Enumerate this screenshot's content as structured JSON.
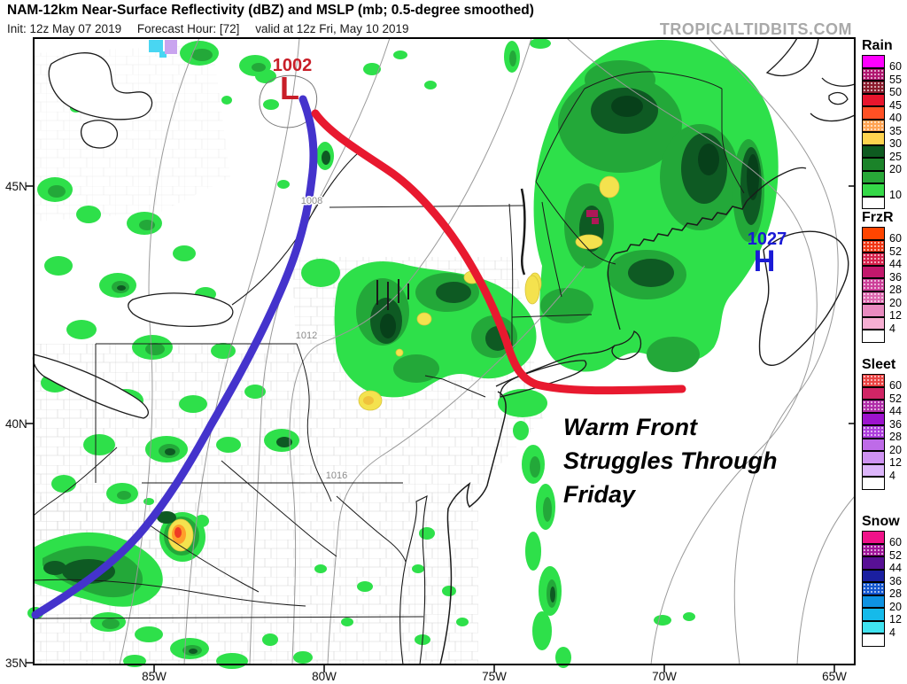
{
  "header": {
    "title": "NAM-12km Near-Surface Reflectivity (dBZ) and MSLP (mb; 0.5-degree smoothed)",
    "init_label": "Init: 12z May 07 2019",
    "forecast_hour_label": "Forecast Hour: [72]",
    "valid_label": "valid at 12z Fri, May 10 2019",
    "watermark": "TROPICALTIDBITS.COM"
  },
  "axes": {
    "lat": [
      "45N",
      "40N",
      "35N"
    ],
    "lon": [
      "85W",
      "80W",
      "75W",
      "70W",
      "65W"
    ]
  },
  "pressure": {
    "low": {
      "value": "1002",
      "symbol": "L"
    },
    "high": {
      "value": "1027",
      "symbol": "H"
    },
    "isobars": [
      "1008",
      "1012",
      "1016"
    ]
  },
  "annotation": {
    "line1": "Warm Front",
    "line2": "Struggles Through",
    "line3": "Friday"
  },
  "colors": {
    "warm_front": "#e8192f",
    "cold_front": "#4433cc",
    "low": "#c81e28",
    "high": "#1a1ad6",
    "watermark": "#a9a9a9",
    "rain_light_green": "#2ee04a",
    "rain_dark_green": "#0e5a23",
    "rain_yellow": "#f4e24e"
  },
  "legends": [
    {
      "title": "Rain",
      "cells": [
        {
          "color": "#FF00FF",
          "dotted": false,
          "label": "60"
        },
        {
          "color": "#B0156F",
          "dotted": true,
          "label": "55"
        },
        {
          "color": "#8B1A2B",
          "dotted": true,
          "label": "50"
        },
        {
          "color": "#E8152D",
          "dotted": false,
          "label": "45"
        },
        {
          "color": "#FF5024",
          "dotted": false,
          "label": "40"
        },
        {
          "color": "#FFA351",
          "dotted": true,
          "label": "35"
        },
        {
          "color": "#FFD44F",
          "dotted": false,
          "label": "30"
        },
        {
          "color": "#0E5B20",
          "dotted": false,
          "label": "25"
        },
        {
          "color": "#1B8329",
          "dotted": false,
          "label": "20"
        },
        {
          "color": "#28A838",
          "dotted": false,
          "label": ""
        },
        {
          "color": "#35D948",
          "dotted": false,
          "label": "10"
        },
        {
          "color": "#FFFFFF",
          "dotted": false,
          "label": ""
        }
      ]
    },
    {
      "title": "FrzR",
      "cells": [
        {
          "color": "#FF4500",
          "dotted": false,
          "label": "60"
        },
        {
          "color": "#F03513",
          "dotted": true,
          "label": "52"
        },
        {
          "color": "#D6204B",
          "dotted": true,
          "label": "44"
        },
        {
          "color": "#C2186C",
          "dotted": false,
          "label": "36"
        },
        {
          "color": "#CC3E98",
          "dotted": true,
          "label": "28"
        },
        {
          "color": "#DB67AE",
          "dotted": true,
          "label": "20"
        },
        {
          "color": "#E98BC0",
          "dotted": false,
          "label": "12"
        },
        {
          "color": "#F7AED3",
          "dotted": false,
          "label": "4"
        },
        {
          "color": "#FFFFFF",
          "dotted": false,
          "label": ""
        }
      ]
    },
    {
      "title": "Sleet",
      "cells": [
        {
          "color": "#EA4141",
          "dotted": true,
          "label": "60"
        },
        {
          "color": "#D12565",
          "dotted": false,
          "label": "52"
        },
        {
          "color": "#B02BA8",
          "dotted": true,
          "label": "44"
        },
        {
          "color": "#9D13CE",
          "dotted": false,
          "label": "36"
        },
        {
          "color": "#AC3BDC",
          "dotted": true,
          "label": "28"
        },
        {
          "color": "#BE6BE8",
          "dotted": false,
          "label": "20"
        },
        {
          "color": "#CE92F2",
          "dotted": false,
          "label": "12"
        },
        {
          "color": "#DCB5FA",
          "dotted": false,
          "label": "4"
        },
        {
          "color": "#FFFFFF",
          "dotted": false,
          "label": ""
        }
      ]
    },
    {
      "title": "Snow",
      "cells": [
        {
          "color": "#F01289",
          "dotted": false,
          "label": "60"
        },
        {
          "color": "#A01398",
          "dotted": true,
          "label": "52"
        },
        {
          "color": "#581095",
          "dotted": false,
          "label": "44"
        },
        {
          "color": "#1A1FA0",
          "dotted": false,
          "label": "36"
        },
        {
          "color": "#1355CE",
          "dotted": true,
          "label": "28"
        },
        {
          "color": "#0E93E2",
          "dotted": false,
          "label": "20"
        },
        {
          "color": "#15BAEA",
          "dotted": false,
          "label": "12"
        },
        {
          "color": "#40E3F0",
          "dotted": false,
          "label": "4"
        },
        {
          "color": "#FFFFFF",
          "dotted": false,
          "label": ""
        }
      ]
    }
  ]
}
